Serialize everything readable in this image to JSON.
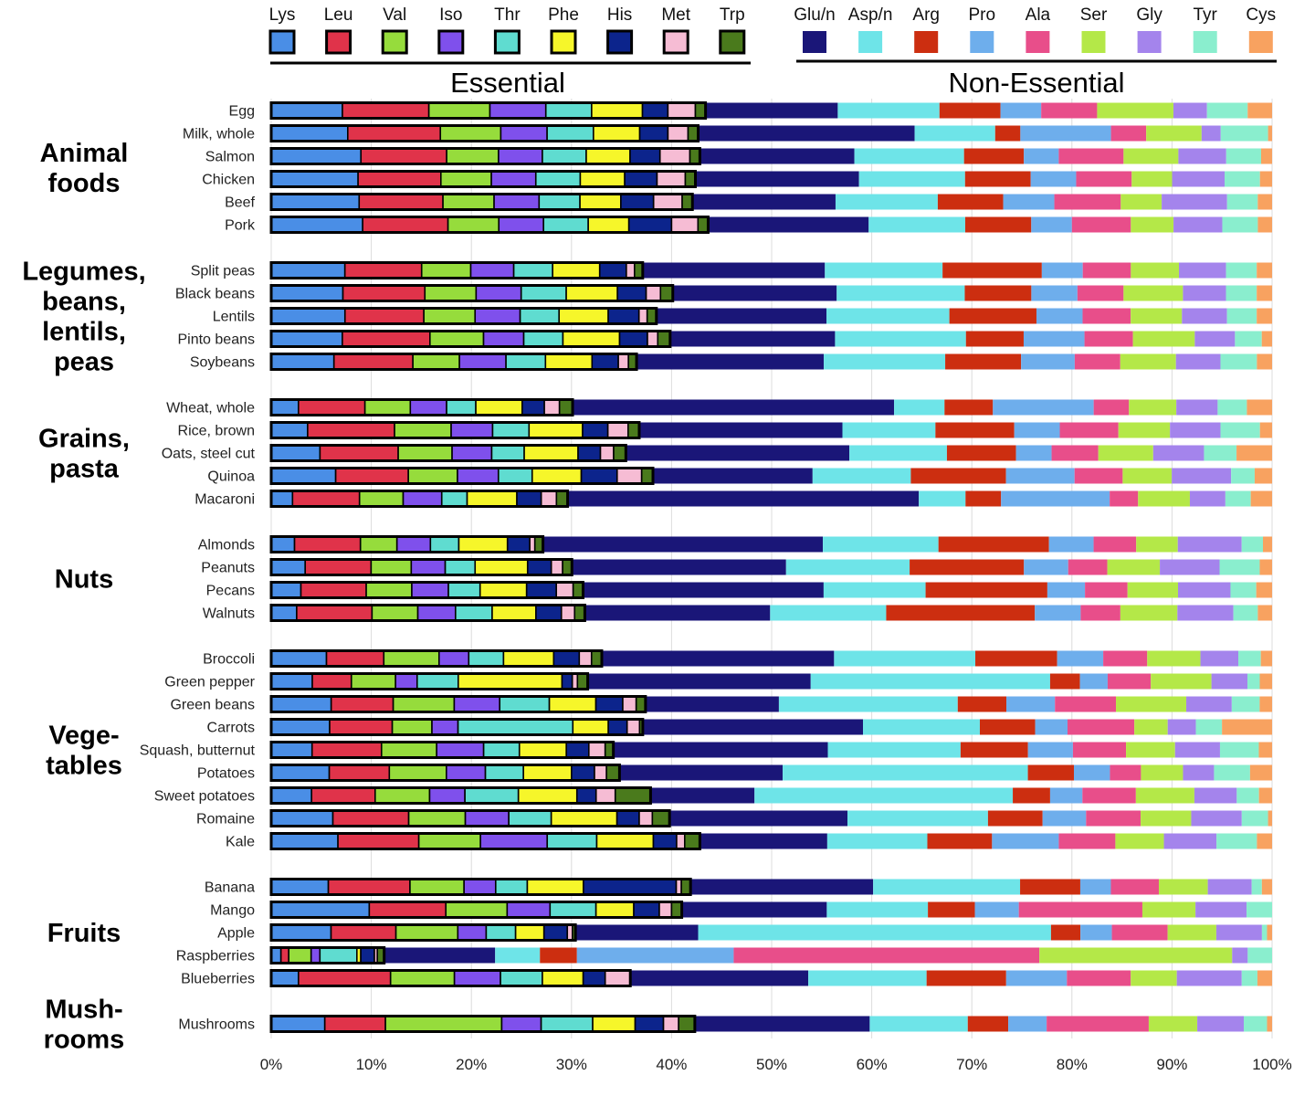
{
  "chart_data": {
    "type": "bar",
    "orientation": "horizontal-stacked-100",
    "title": "",
    "xlabel": "",
    "ylabel": "",
    "xlim": [
      0,
      100
    ],
    "x_ticks": [
      "0%",
      "10%",
      "20%",
      "30%",
      "40%",
      "50%",
      "60%",
      "70%",
      "80%",
      "90%",
      "100%"
    ],
    "grid": "vertical",
    "essential_label": "Essential",
    "nonessential_label": "Non-Essential",
    "essential_legend": [
      {
        "name": "Lys",
        "color": "#4a8ee6"
      },
      {
        "name": "Leu",
        "color": "#e0334a"
      },
      {
        "name": "Val",
        "color": "#96dc3c"
      },
      {
        "name": "Iso",
        "color": "#7f50ec"
      },
      {
        "name": "Thr",
        "color": "#5fdcd0"
      },
      {
        "name": "Phe",
        "color": "#f6f62a"
      },
      {
        "name": "His",
        "color": "#0c248c"
      },
      {
        "name": "Met",
        "color": "#f6bcd4"
      },
      {
        "name": "Trp",
        "color": "#4a7a1c"
      }
    ],
    "nonessential_legend": [
      {
        "name": "Glu/n",
        "color": "#1a1678"
      },
      {
        "name": "Asp/n",
        "color": "#6ee4e8"
      },
      {
        "name": "Arg",
        "color": "#cc2e10"
      },
      {
        "name": "Pro",
        "color": "#6eaeec"
      },
      {
        "name": "Ala",
        "color": "#e84e8a"
      },
      {
        "name": "Ser",
        "color": "#b4e848"
      },
      {
        "name": "Gly",
        "color": "#a484ec"
      },
      {
        "name": "Tyr",
        "color": "#8aeece"
      },
      {
        "name": "Cys",
        "color": "#f8a260"
      }
    ],
    "series_order": [
      "Lys",
      "Leu",
      "Val",
      "Iso",
      "Thr",
      "Phe",
      "His",
      "Met",
      "Trp",
      "Glu/n",
      "Asp/n",
      "Arg",
      "Pro",
      "Ala",
      "Ser",
      "Gly",
      "Tyr",
      "Cys"
    ],
    "groups": [
      {
        "title": [
          "Animal",
          "foods"
        ],
        "items": [
          {
            "name": "Egg",
            "values": [
              7,
              8.5,
              6,
              5.5,
              4.5,
              5,
              2.5,
              2.7,
              1,
              13,
              10,
              6,
              4,
              5.5,
              7.5,
              3.3,
              4,
              2.4
            ]
          },
          {
            "name": "Milk, whole",
            "values": [
              7.6,
              9.2,
              6,
              4.6,
              4.6,
              4.6,
              2.8,
              2,
              1,
              21.5,
              8,
              2.5,
              9,
              3.5,
              5.5,
              1.9,
              4.7,
              0.4
            ]
          },
          {
            "name": "Salmon",
            "values": [
              9,
              8.6,
              5.2,
              4.4,
              4.4,
              4.4,
              3,
              3,
              1,
              15.5,
              11,
              6,
              3.5,
              6.5,
              5.5,
              4.8,
              3.5,
              1.1
            ]
          },
          {
            "name": "Chicken",
            "values": [
              8.6,
              8.2,
              5,
              4.4,
              4.4,
              4.4,
              3.2,
              2.8,
              1,
              16.2,
              10.5,
              6.5,
              4.5,
              5.5,
              4,
              5.2,
              3.5,
              1.2
            ]
          },
          {
            "name": "Beef",
            "values": [
              8.6,
              8.2,
              5,
              4.4,
              4,
              4,
              3.2,
              2.8,
              1,
              14,
              10,
              6.4,
              5,
              6.5,
              4,
              6.4,
              3,
              1.4
            ]
          },
          {
            "name": "Pork",
            "values": [
              9,
              8.4,
              5,
              4.4,
              4.4,
              4,
              4.2,
              2.6,
              1,
              15.8,
              9.5,
              6.5,
              4,
              5.8,
              4.2,
              4.8,
              3.5,
              1.4
            ]
          }
        ]
      },
      {
        "title": [
          "Legumes,",
          "beans,",
          "lentils,",
          "peas"
        ],
        "items": [
          {
            "name": "Split peas",
            "values": [
              7.2,
              7.5,
              4.8,
              4.2,
              3.8,
              4.6,
              2.6,
              0.8,
              0.8,
              17.8,
              11.5,
              9.7,
              4,
              4.7,
              4.7,
              4.6,
              3,
              1.5
            ]
          },
          {
            "name": "Black beans",
            "values": [
              7,
              8,
              5,
              4.4,
              4.4,
              5,
              2.8,
              1.4,
              1.2,
              16,
              12.5,
              6.5,
              4.5,
              4.5,
              5.8,
              4.2,
              3,
              1.5
            ]
          },
          {
            "name": "Lentils",
            "values": [
              7.2,
              7.7,
              5,
              4.4,
              3.8,
              4.8,
              3,
              0.8,
              0.9,
              16.6,
              12,
              8.5,
              4.5,
              4.7,
              5,
              4.4,
              2.9,
              1.5
            ]
          },
          {
            "name": "Pinto beans",
            "values": [
              6.9,
              8.5,
              5.2,
              3.9,
              3.8,
              5.5,
              2.7,
              1,
              1.2,
              16,
              12.7,
              5.6,
              5.9,
              4.7,
              6,
              3.9,
              2.6,
              1
            ]
          },
          {
            "name": "Soybeans",
            "values": [
              6.2,
              7.8,
              4.6,
              4.6,
              3.9,
              4.6,
              2.6,
              1,
              0.8,
              18.5,
              12,
              7.5,
              5.3,
              4.5,
              5.5,
              4.4,
              3.6,
              1.5
            ]
          }
        ]
      },
      {
        "title": [
          "Grains,",
          "pasta"
        ],
        "items": [
          {
            "name": "Wheat, whole",
            "values": [
              2.7,
              6.6,
              4.5,
              3.6,
              2.9,
              4.6,
              2.2,
              1.5,
              1.3,
              31.9,
              5,
              4.8,
              10,
              3.5,
              4.7,
              4.1,
              2.9,
              2.5
            ]
          },
          {
            "name": "Rice, brown",
            "values": [
              3.6,
              8.6,
              5.6,
              4.1,
              3.6,
              5.3,
              2.5,
              2,
              1.1,
              20.1,
              9.2,
              7.8,
              4.5,
              5.8,
              5.1,
              5,
              3.9,
              1.2
            ]
          },
          {
            "name": "Oats, steel cut",
            "values": [
              4.8,
              7.7,
              5.3,
              3.9,
              3.2,
              5.3,
              2.2,
              1.3,
              1.2,
              22,
              9.6,
              6.8,
              3.5,
              4.6,
              5.4,
              5,
              3.2,
              3.5
            ]
          },
          {
            "name": "Quinoa",
            "values": [
              6.3,
              7.1,
              4.8,
              4,
              3.3,
              4.8,
              3.5,
              2.4,
              1.1,
              15.6,
              9.6,
              9.3,
              6.7,
              4.7,
              4.8,
              5.8,
              2.3,
              1.7
            ]
          },
          {
            "name": "Macaroni",
            "values": [
              2.1,
              6.6,
              4.3,
              3.8,
              2.5,
              4.9,
              2.4,
              1.5,
              1.1,
              34.6,
              4.6,
              3.5,
              10.7,
              2.8,
              5.1,
              3.5,
              2.5,
              2.1
            ]
          }
        ]
      },
      {
        "title": [
          "Nuts"
        ],
        "items": [
          {
            "name": "Almonds",
            "values": [
              2.3,
              6.5,
              3.6,
              3.3,
              2.8,
              4.8,
              2.2,
              0.5,
              0.8,
              27.6,
              11.4,
              10.9,
              4.4,
              4.2,
              4.1,
              6.3,
              2.1,
              0.9
            ]
          },
          {
            "name": "Peanuts",
            "values": [
              3.3,
              6.4,
              3.9,
              3.3,
              2.9,
              5.1,
              2.3,
              1.1,
              0.9,
              20.8,
              12,
              11.1,
              4.3,
              3.8,
              5.1,
              5.8,
              3.9,
              1.2
            ]
          },
          {
            "name": "Pecans",
            "values": [
              3,
              6.6,
              4.6,
              3.7,
              3.2,
              4.7,
              3,
              1.7,
              1,
              24.3,
              10.3,
              12.3,
              3.8,
              4.3,
              5.1,
              5.3,
              2.6,
              1.6
            ]
          },
          {
            "name": "Walnuts",
            "values": [
              2.5,
              7.4,
              4.5,
              3.7,
              3.6,
              4.3,
              2.5,
              1.3,
              1,
              18.2,
              11.4,
              14.6,
              4.5,
              3.9,
              5.6,
              5.5,
              2.4,
              1.4
            ]
          }
        ]
      },
      {
        "title": [
          "Vege-",
          "tables"
        ],
        "items": [
          {
            "name": "Broccoli",
            "values": [
              5.4,
              5.6,
              5.4,
              2.9,
              3.4,
              4.9,
              2.5,
              1.2,
              1,
              22.7,
              13.8,
              8,
              4.5,
              4.3,
              5.2,
              3.7,
              2.2,
              1.1
            ]
          },
          {
            "name": "Green pepper",
            "values": [
              4,
              3.8,
              4.3,
              2.1,
              4,
              10.1,
              1,
              0.5,
              1,
              21.7,
              23.3,
              2.9,
              2.7,
              4.2,
              5.9,
              3.5,
              1.2,
              1.2
            ]
          },
          {
            "name": "Green beans",
            "values": [
              5.8,
              6,
              5.9,
              4.4,
              4.8,
              4.5,
              2.6,
              1.3,
              0.9,
              12.9,
              17.3,
              4.7,
              4.7,
              5.9,
              6.8,
              4.4,
              2.7,
              1.2
            ]
          },
          {
            "name": "Carrots",
            "values": [
              5.6,
              6,
              3.8,
              2.5,
              11,
              3.4,
              1.8,
              1.2,
              0.3,
              21.1,
              11.2,
              5.3,
              3.1,
              6.4,
              3.2,
              2.7,
              2.5,
              4.8
            ]
          },
          {
            "name": "Squash, butternut",
            "values": [
              4,
              6.8,
              5.4,
              4.6,
              3.5,
              4.6,
              2.2,
              1.6,
              0.8,
              21,
              13,
              6.6,
              4.4,
              5.2,
              4.8,
              4.4,
              3.8,
              1.3
            ]
          },
          {
            "name": "Potatoes",
            "values": [
              5.8,
              6,
              5.7,
              3.9,
              3.8,
              4.8,
              2.3,
              1.2,
              1.3,
              16.3,
              24.5,
              4.6,
              3.6,
              3.1,
              4.2,
              3.1,
              3.6,
              2.2
            ]
          },
          {
            "name": "Sweet potatoes",
            "values": [
              4,
              6.3,
              5.4,
              3.5,
              5.3,
              5.8,
              1.9,
              1.9,
              3.5,
              10.3,
              25.6,
              3.7,
              3.2,
              5.3,
              5.8,
              4.2,
              2.2,
              1.3
            ]
          },
          {
            "name": "Romaine",
            "values": [
              6.1,
              7.5,
              5.6,
              4.3,
              4.2,
              6.5,
              2.2,
              1.3,
              1.7,
              17.6,
              13.9,
              5.4,
              4.3,
              5.4,
              5,
              5,
              2.6,
              0.4
            ]
          },
          {
            "name": "Kale",
            "values": [
              6.6,
              8,
              6.1,
              6.6,
              4.9,
              5.6,
              2.3,
              0.8,
              1.5,
              12.6,
              9.9,
              6.4,
              6.6,
              5.6,
              4.8,
              5.2,
              4,
              1.5
            ]
          }
        ]
      },
      {
        "title": [
          "Fruits"
        ],
        "items": [
          {
            "name": "Banana",
            "values": [
              5.6,
              8,
              5.3,
              3.1,
              3.1,
              5.5,
              9.1,
              0.5,
              0.9,
              17.9,
              14.4,
              5.9,
              3,
              4.7,
              4.8,
              4.3,
              1,
              1
            ]
          },
          {
            "name": "Mango",
            "values": [
              9.6,
              7.5,
              6,
              4.2,
              4.5,
              3.7,
              2.5,
              1.2,
              1,
              14.2,
              9.9,
              4.6,
              4.3,
              12.1,
              5.2,
              5,
              2.5,
              0
            ]
          },
          {
            "name": "Apple",
            "values": [
              5.9,
              6.4,
              6.1,
              2.8,
              2.9,
              2.8,
              2.3,
              0.5,
              0.3,
              12.1,
              34.8,
              2.9,
              3.1,
              5.5,
              4.8,
              4.5,
              0.5,
              0.5
            ]
          },
          {
            "name": "Raspberries",
            "values": [
              1,
              0.8,
              2.3,
              0.9,
              3.8,
              0.4,
              1.4,
              0.3,
              0.7,
              11.4,
              4.6,
              3.8,
              16.1,
              31.4,
              19.8,
              1.6,
              2.5,
              0
            ]
          },
          {
            "name": "Blueberries",
            "values": [
              2.6,
              8.8,
              6.1,
              4.4,
              4,
              3.9,
              2.1,
              2.4,
              0,
              17,
              11.3,
              7.6,
              5.8,
              6.1,
              4.4,
              6.2,
              1.5,
              1.4
            ]
          }
        ]
      },
      {
        "title": [
          "Mush-",
          "rooms"
        ],
        "items": [
          {
            "name": "Mushrooms",
            "values": [
              5.3,
              6,
              11.5,
              3.9,
              5.1,
              4.2,
              2.8,
              1.5,
              1.6,
              17.3,
              9.7,
              4,
              3.8,
              10.1,
              4.8,
              4.6,
              2.3,
              0.5
            ]
          }
        ]
      }
    ]
  }
}
